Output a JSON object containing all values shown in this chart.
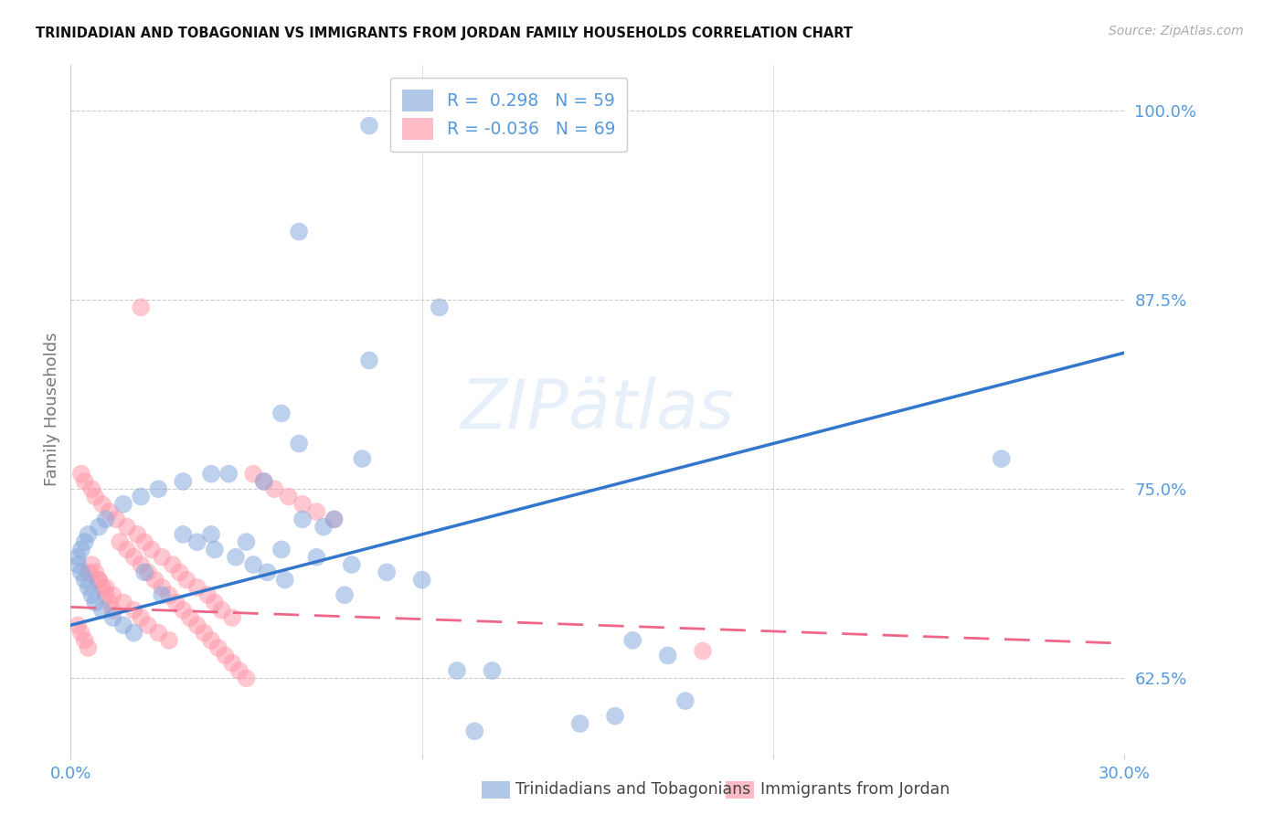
{
  "title": "TRINIDADIAN AND TOBAGONIAN VS IMMIGRANTS FROM JORDAN FAMILY HOUSEHOLDS CORRELATION CHART",
  "source": "Source: ZipAtlas.com",
  "ylabel": "Family Households",
  "ytick_labels": [
    "62.5%",
    "75.0%",
    "87.5%",
    "100.0%"
  ],
  "ytick_values": [
    0.625,
    0.75,
    0.875,
    1.0
  ],
  "xlim": [
    0.0,
    0.3
  ],
  "ylim": [
    0.575,
    1.03
  ],
  "blue_R": 0.298,
  "blue_N": 59,
  "pink_R": -0.036,
  "pink_N": 69,
  "blue_color": "#88AADD",
  "pink_color": "#FF99AA",
  "blue_line_color": "#3377CC",
  "pink_line_color": "#EE6688",
  "blue_label": "Trinidadians and Tobagonians",
  "pink_label": "Immigrants from Jordan",
  "tick_color": "#5599DD",
  "axis_label_color": "#777777",
  "grid_color": "#CCCCCC",
  "title_color": "#111111",
  "blue_line_y0": 0.66,
  "blue_line_y1": 0.84,
  "pink_line_y0": 0.672,
  "pink_line_y1": 0.648,
  "blue_x": [
    0.085,
    0.065,
    0.105,
    0.085,
    0.06,
    0.04,
    0.032,
    0.025,
    0.02,
    0.015,
    0.01,
    0.008,
    0.005,
    0.004,
    0.003,
    0.002,
    0.002,
    0.003,
    0.004,
    0.005,
    0.006,
    0.007,
    0.009,
    0.012,
    0.015,
    0.018,
    0.021,
    0.026,
    0.032,
    0.036,
    0.041,
    0.047,
    0.052,
    0.056,
    0.061,
    0.066,
    0.072,
    0.078,
    0.083,
    0.045,
    0.055,
    0.065,
    0.075,
    0.04,
    0.05,
    0.06,
    0.07,
    0.08,
    0.09,
    0.1,
    0.11,
    0.12,
    0.16,
    0.17,
    0.155,
    0.175,
    0.145,
    0.265,
    0.115
  ],
  "blue_y": [
    0.99,
    0.92,
    0.87,
    0.835,
    0.8,
    0.76,
    0.755,
    0.75,
    0.745,
    0.74,
    0.73,
    0.725,
    0.72,
    0.715,
    0.71,
    0.705,
    0.7,
    0.695,
    0.69,
    0.685,
    0.68,
    0.675,
    0.67,
    0.665,
    0.66,
    0.655,
    0.695,
    0.68,
    0.72,
    0.715,
    0.71,
    0.705,
    0.7,
    0.695,
    0.69,
    0.73,
    0.725,
    0.68,
    0.77,
    0.76,
    0.755,
    0.78,
    0.73,
    0.72,
    0.715,
    0.71,
    0.705,
    0.7,
    0.695,
    0.69,
    0.63,
    0.63,
    0.65,
    0.64,
    0.6,
    0.61,
    0.595,
    0.77,
    0.59
  ],
  "pink_x": [
    0.005,
    0.008,
    0.01,
    0.012,
    0.015,
    0.018,
    0.02,
    0.022,
    0.025,
    0.028,
    0.003,
    0.004,
    0.006,
    0.007,
    0.009,
    0.011,
    0.013,
    0.016,
    0.019,
    0.021,
    0.023,
    0.026,
    0.029,
    0.031,
    0.033,
    0.036,
    0.039,
    0.041,
    0.043,
    0.046,
    0.002,
    0.003,
    0.004,
    0.005,
    0.006,
    0.007,
    0.008,
    0.009,
    0.01,
    0.011,
    0.012,
    0.014,
    0.016,
    0.018,
    0.02,
    0.022,
    0.024,
    0.026,
    0.028,
    0.03,
    0.032,
    0.034,
    0.036,
    0.038,
    0.04,
    0.042,
    0.044,
    0.046,
    0.048,
    0.05,
    0.052,
    0.055,
    0.058,
    0.062,
    0.066,
    0.07,
    0.075,
    0.18,
    0.02
  ],
  "pink_y": [
    0.695,
    0.69,
    0.685,
    0.68,
    0.675,
    0.67,
    0.665,
    0.66,
    0.655,
    0.65,
    0.76,
    0.755,
    0.75,
    0.745,
    0.74,
    0.735,
    0.73,
    0.725,
    0.72,
    0.715,
    0.71,
    0.705,
    0.7,
    0.695,
    0.69,
    0.685,
    0.68,
    0.675,
    0.67,
    0.665,
    0.66,
    0.655,
    0.65,
    0.645,
    0.7,
    0.695,
    0.69,
    0.685,
    0.68,
    0.675,
    0.67,
    0.715,
    0.71,
    0.705,
    0.7,
    0.695,
    0.69,
    0.685,
    0.68,
    0.675,
    0.67,
    0.665,
    0.66,
    0.655,
    0.65,
    0.645,
    0.64,
    0.635,
    0.63,
    0.625,
    0.76,
    0.755,
    0.75,
    0.745,
    0.74,
    0.735,
    0.73,
    0.643,
    0.87
  ]
}
